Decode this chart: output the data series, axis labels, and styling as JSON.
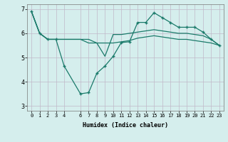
{
  "xlabel": "Humidex (Indice chaleur)",
  "xlim": [
    -0.5,
    23.5
  ],
  "ylim": [
    2.8,
    7.2
  ],
  "yticks": [
    3,
    4,
    5,
    6,
    7
  ],
  "xticks": [
    0,
    1,
    2,
    3,
    4,
    6,
    7,
    8,
    9,
    10,
    11,
    12,
    13,
    14,
    15,
    16,
    17,
    18,
    19,
    20,
    21,
    22,
    23
  ],
  "background_color": "#d5eeed",
  "grid_color": "#c0b8c8",
  "line_color": "#1a7a6a",
  "line1_x": [
    0,
    1,
    2,
    3,
    4,
    6,
    7,
    8,
    9,
    10,
    11,
    12,
    13,
    14,
    15,
    16,
    17,
    18,
    19,
    20,
    21,
    22,
    23
  ],
  "line1_y": [
    6.9,
    6.0,
    5.75,
    5.75,
    4.65,
    3.5,
    3.55,
    4.35,
    4.65,
    5.05,
    5.62,
    5.65,
    6.45,
    6.45,
    6.85,
    6.65,
    6.45,
    6.25,
    6.25,
    6.25,
    6.05,
    5.75,
    5.5
  ],
  "line2_x": [
    0,
    1,
    2,
    3,
    4,
    6,
    7,
    8,
    9,
    10,
    11,
    12,
    13,
    14,
    15,
    16,
    17,
    18,
    19,
    20,
    21,
    22,
    23
  ],
  "line2_y": [
    6.9,
    6.0,
    5.75,
    5.75,
    5.75,
    5.75,
    5.6,
    5.6,
    5.05,
    5.95,
    5.95,
    6.0,
    6.05,
    6.1,
    6.15,
    6.1,
    6.05,
    6.0,
    6.0,
    5.95,
    5.9,
    5.75,
    5.5
  ],
  "line3_x": [
    0,
    1,
    2,
    3,
    4,
    6,
    7,
    8,
    9,
    10,
    11,
    12,
    13,
    14,
    15,
    16,
    17,
    18,
    19,
    20,
    21,
    22,
    23
  ],
  "line3_y": [
    6.9,
    6.0,
    5.75,
    5.75,
    5.75,
    5.75,
    5.75,
    5.6,
    5.6,
    5.6,
    5.65,
    5.7,
    5.8,
    5.85,
    5.9,
    5.85,
    5.8,
    5.75,
    5.75,
    5.7,
    5.65,
    5.6,
    5.5
  ]
}
